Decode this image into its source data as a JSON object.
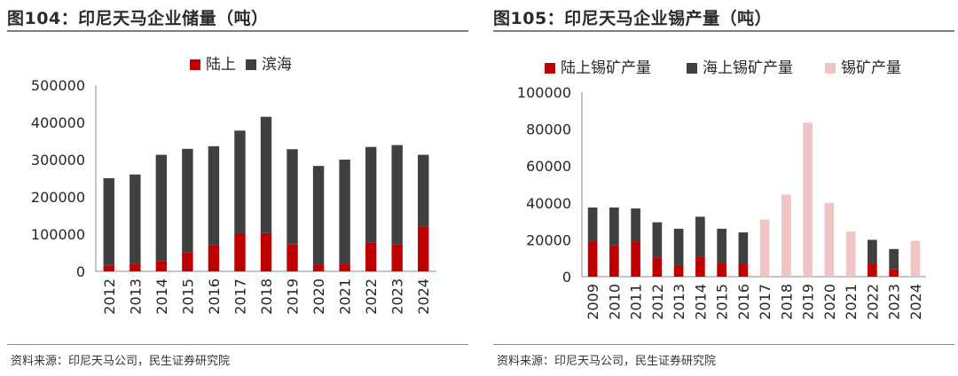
{
  "chart_data": [
    {
      "type": "bar",
      "stacked": true,
      "title": "图104：印尼天马企业储量（吨）",
      "categories": [
        "2012",
        "2013",
        "2014",
        "2015",
        "2016",
        "2017",
        "2018",
        "2019",
        "2020",
        "2021",
        "2022",
        "2023",
        "2024"
      ],
      "series": [
        {
          "name": "陆上",
          "color": "#c00000",
          "values": [
            15000,
            20000,
            28000,
            52000,
            70000,
            100000,
            103000,
            72000,
            18000,
            20000,
            78000,
            73000,
            120000
          ]
        },
        {
          "name": "滨海",
          "color": "#404040",
          "values": [
            235000,
            240000,
            285000,
            277000,
            266000,
            278000,
            312000,
            256000,
            265000,
            280000,
            256000,
            266000,
            193000
          ]
        }
      ],
      "ylim": [
        0,
        500000
      ],
      "yticks": [
        "0",
        "100000",
        "200000",
        "300000",
        "400000",
        "500000"
      ],
      "legend_position": "top",
      "source": "资料来源：印尼天马公司，民生证券研究院"
    },
    {
      "type": "bar",
      "stacked": true,
      "title": "图105：印尼天马企业锡产量（吨）",
      "categories": [
        "2009",
        "2010",
        "2011",
        "2012",
        "2013",
        "2014",
        "2015",
        "2016",
        "2017",
        "2018",
        "2019",
        "2020",
        "2021",
        "2022",
        "2023",
        "2024"
      ],
      "series": [
        {
          "name": "陆上锡矿产量",
          "color": "#c00000",
          "values": [
            19000,
            17000,
            19000,
            10500,
            6000,
            11000,
            7500,
            7000,
            null,
            null,
            null,
            null,
            null,
            7000,
            4000,
            null
          ]
        },
        {
          "name": "海上锡矿产量",
          "color": "#404040",
          "values": [
            18500,
            20500,
            18000,
            19000,
            20000,
            21500,
            18500,
            17000,
            null,
            null,
            null,
            null,
            null,
            13000,
            11000,
            null
          ]
        },
        {
          "name": "锡矿产量",
          "color": "#f0c4c4",
          "values": [
            null,
            null,
            null,
            null,
            null,
            null,
            null,
            null,
            31000,
            44500,
            83500,
            40000,
            24500,
            null,
            null,
            19500
          ]
        }
      ],
      "ylim": [
        0,
        100000
      ],
      "yticks": [
        "0",
        "20000",
        "40000",
        "60000",
        "80000",
        "100000"
      ],
      "legend_position": "top",
      "source": "资料来源：印尼天马公司，民生证券研究院"
    }
  ]
}
